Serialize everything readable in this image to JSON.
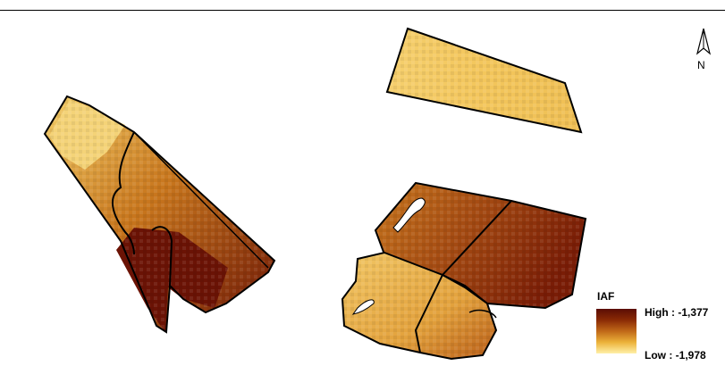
{
  "map": {
    "north_label": "N",
    "legend": {
      "title": "IAF",
      "high_label": "High : -1,377",
      "low_label": "Low : -1,978",
      "ramp_colors": [
        "#5a0d05",
        "#8a2a05",
        "#c06818",
        "#ecb23a",
        "#fff0a8"
      ]
    }
  }
}
